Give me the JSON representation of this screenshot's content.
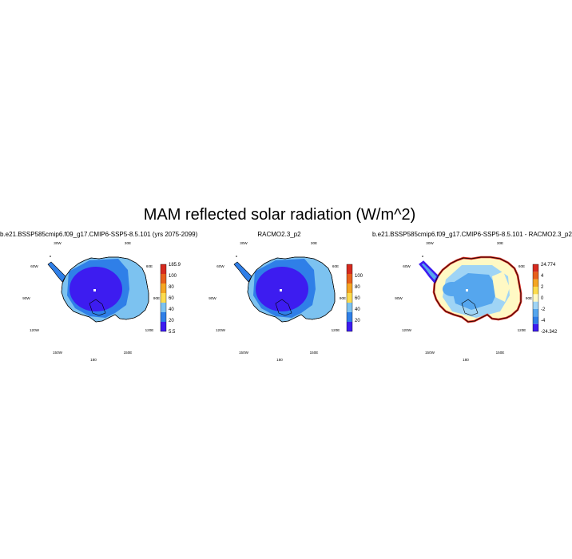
{
  "figure": {
    "title": "MAM reflected solar radiation (W/m^2)"
  },
  "panels": [
    {
      "title": "b.e21.BSSP585cmip6.f09_g17.CMIP6-SSP5-8.5.101 (yrs 2075-2099)",
      "lon_labels": {
        "top_left": "30W",
        "top_right": "30E",
        "mid_left": "60W",
        "mid_right": "60E",
        "left": "90W",
        "right": "90E",
        "low_left": "120W",
        "low_right": "120E",
        "bot_left": "150W",
        "bot_right": "150E",
        "bottom": "180"
      },
      "colorbar": {
        "colors": [
          "#3d1cf0",
          "#2f7fe8",
          "#7cc2f0",
          "#fcdc4e",
          "#f5a623",
          "#e8601c",
          "#d62a1f"
        ],
        "labels": [
          "5.5",
          "20",
          "40",
          "60",
          "80",
          "100",
          "185.9"
        ]
      },
      "zones": [
        "#3d1cf0",
        "#2f7fe8",
        "#7cc2f0"
      ]
    },
    {
      "title": "RACMO2.3_p2",
      "lon_labels": {
        "top_left": "30W",
        "top_right": "30E",
        "mid_left": "60W",
        "mid_right": "60E",
        "left": "90W",
        "right": "90E",
        "low_left": "120W",
        "low_right": "120E",
        "bot_left": "150W",
        "bot_right": "150E",
        "bottom": "180"
      },
      "colorbar": {
        "colors": [
          "#3d1cf0",
          "#2f7fe8",
          "#7cc2f0",
          "#fcdc4e",
          "#f5a623",
          "#e8601c",
          "#d62a1f"
        ],
        "labels": [
          "",
          "20",
          "40",
          "60",
          "80",
          "100",
          ""
        ]
      },
      "zones": [
        "#3d1cf0",
        "#2f7fe8",
        "#7cc2f0"
      ]
    },
    {
      "title": "b.e21.BSSP585cmip6.f09_g17.CMIP6-SSP5-8.5.101 - RACMO2.3_p2",
      "lon_labels": {
        "top_left": "30W",
        "top_right": "30E",
        "mid_left": "60W",
        "mid_right": "60E",
        "left": "90W",
        "right": "90E",
        "low_left": "120W",
        "low_right": "120E",
        "bot_left": "150W",
        "bot_right": "150E",
        "bottom": "180"
      },
      "colorbar": {
        "colors": [
          "#3d1cf0",
          "#2f7fe8",
          "#55a6ee",
          "#9fd4f5",
          "#fff9c4",
          "#fcdc4e",
          "#f5a623",
          "#e8601c",
          "#d62a1f"
        ],
        "labels": [
          "-24.342",
          "-4",
          "-2",
          "0",
          "2",
          "4",
          "24.774"
        ]
      },
      "zones": [
        "#9fd4f5",
        "#55a6ee",
        "#fff9c4"
      ]
    }
  ]
}
